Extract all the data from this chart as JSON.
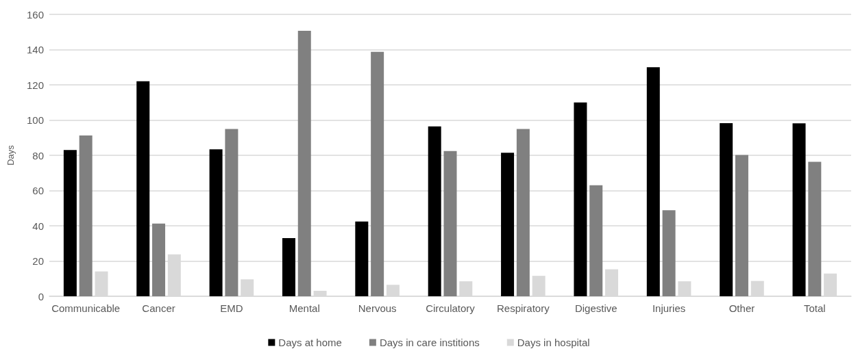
{
  "chart_data": {
    "type": "bar",
    "ylabel": "Days",
    "categories": [
      "Communicable",
      "Cancer",
      "EMD",
      "Mental",
      "Nervous",
      "Circulatory",
      "Respiratory",
      "Digestive",
      "Injuries",
      "Other",
      "Total"
    ],
    "series": [
      {
        "name": "Days at home",
        "color": "#000000",
        "values": [
          83,
          122,
          83.4,
          33,
          42.4,
          96.4,
          81.5,
          110,
          130,
          98.3,
          98.2
        ]
      },
      {
        "name": "Days in care institions",
        "color": "#808080",
        "values": [
          91.3,
          41.3,
          95,
          150.7,
          138.7,
          82.4,
          95,
          63,
          48.8,
          80.2,
          76.3
        ]
      },
      {
        "name": "Days in hospital",
        "color": "#d9d9d9",
        "values": [
          14.1,
          23.8,
          9.6,
          3.1,
          6.5,
          8.5,
          11.6,
          15.3,
          8.5,
          8.7,
          12.9
        ]
      }
    ],
    "ylim": [
      0,
      160
    ],
    "yticks": [
      0,
      20,
      40,
      60,
      80,
      100,
      120,
      140,
      160
    ],
    "grid": "y",
    "legend": "bottom"
  }
}
